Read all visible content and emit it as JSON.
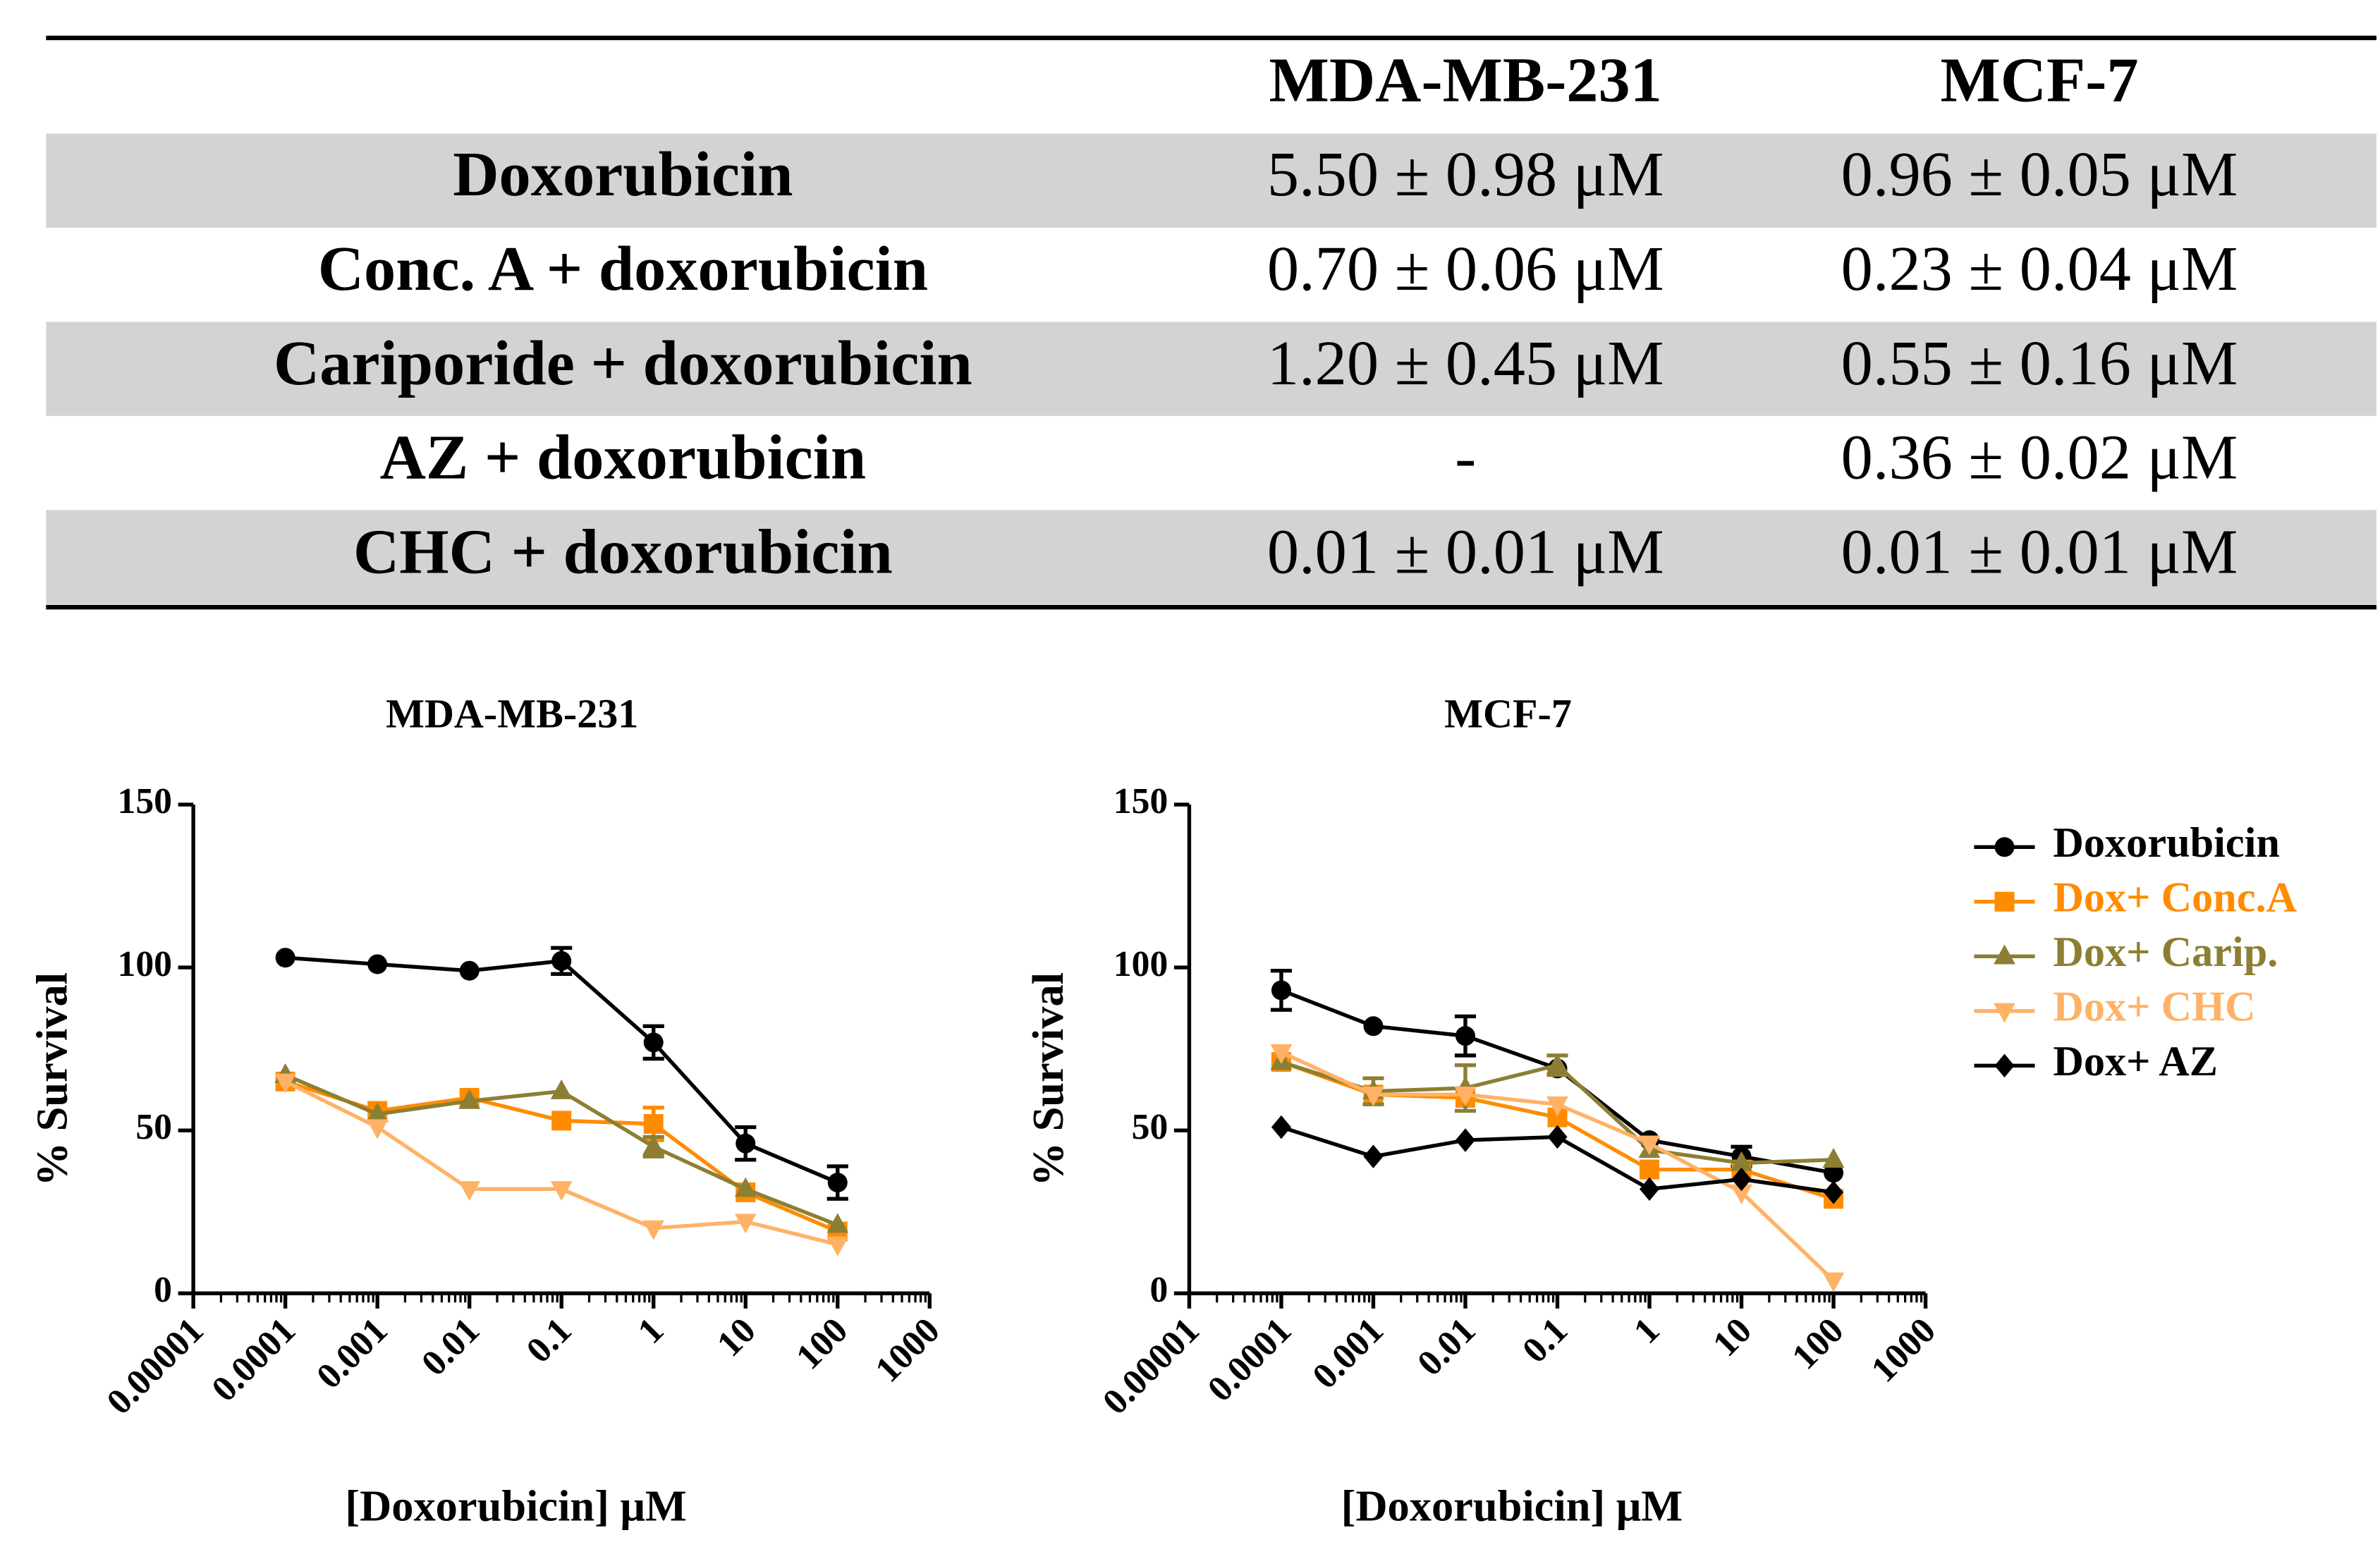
{
  "table": {
    "columns": [
      "MDA-MB-231",
      "MCF-7"
    ],
    "rows": [
      {
        "label": "Doxorubicin",
        "values": [
          "5.50 ± 0.98 μM",
          "0.96 ± 0.05 μM"
        ]
      },
      {
        "label": "Conc. A + doxorubicin",
        "values": [
          "0.70 ± 0.06 μM",
          "0.23 ± 0.04 μM"
        ]
      },
      {
        "label": "Cariporide + doxorubicin",
        "values": [
          "1.20 ± 0.45 μM",
          "0.55 ± 0.16 μM"
        ]
      },
      {
        "label": "AZ + doxorubicin",
        "values": [
          "-",
          "0.36 ± 0.02 μM"
        ]
      },
      {
        "label": "CHC + doxorubicin",
        "values": [
          "0.01 ± 0.01 μM",
          "0.01 ± 0.01 μM"
        ]
      }
    ]
  },
  "chart_data": [
    {
      "type": "line",
      "title": "MDA-MB-231",
      "x_label": "[Doxorubicin] μM",
      "y_label": "% Survival",
      "x": [
        0.0001,
        0.001,
        0.01,
        0.1,
        1,
        10,
        100
      ],
      "log_x": true,
      "xlim": [
        1e-05,
        1000
      ],
      "xticks": [
        1e-05,
        0.0001,
        0.001,
        0.01,
        0.1,
        1,
        10,
        100,
        1000
      ],
      "ylim": [
        0,
        150
      ],
      "yticks": [
        0,
        50,
        100,
        150
      ],
      "series": [
        {
          "color": "#000000",
          "marker": "circle",
          "values": [
            103,
            101,
            99,
            102,
            77,
            46,
            34
          ],
          "errors": [
            null,
            null,
            null,
            4,
            5,
            5,
            5
          ]
        },
        {
          "color": "#ff8c00",
          "marker": "square",
          "values": [
            65,
            56,
            60,
            53,
            52,
            31,
            19
          ],
          "errors": [
            null,
            null,
            null,
            null,
            5,
            null,
            null
          ]
        },
        {
          "color": "#8c7f33",
          "marker": "triangle-up",
          "values": [
            67,
            55,
            59,
            62,
            45,
            32,
            21
          ],
          "errors": [
            null,
            null,
            null,
            null,
            3,
            null,
            null
          ]
        },
        {
          "color": "#ffb266",
          "marker": "triangle-down",
          "values": [
            65,
            51,
            32,
            32,
            20,
            22,
            15
          ],
          "errors": [
            null,
            null,
            null,
            null,
            null,
            null,
            null
          ]
        }
      ]
    },
    {
      "type": "line",
      "title": "MCF-7",
      "x_label": "[Doxorubicin] μM",
      "y_label": "% Survival",
      "x": [
        0.0001,
        0.001,
        0.01,
        0.1,
        1,
        10,
        100
      ],
      "log_x": true,
      "xlim": [
        1e-05,
        1000
      ],
      "xticks": [
        1e-05,
        0.0001,
        0.001,
        0.01,
        0.1,
        1,
        10,
        100,
        1000
      ],
      "ylim": [
        0,
        150
      ],
      "yticks": [
        0,
        50,
        100,
        150
      ],
      "legend": "right",
      "series": [
        {
          "name": "Doxorubicin",
          "color": "#000000",
          "marker": "circle",
          "values": [
            93,
            82,
            79,
            69,
            47,
            42,
            37
          ],
          "errors": [
            6,
            null,
            6,
            null,
            null,
            3,
            null
          ]
        },
        {
          "name": "Dox+ Conc.A",
          "color": "#ff8c00",
          "marker": "square",
          "values": [
            71,
            61,
            60,
            54,
            38,
            38,
            29
          ],
          "errors": [
            null,
            null,
            null,
            null,
            null,
            null,
            null
          ]
        },
        {
          "name": "Dox+ Carip.",
          "color": "#8c7f33",
          "marker": "triangle-up",
          "values": [
            71,
            62,
            63,
            70,
            44,
            40,
            41
          ],
          "errors": [
            null,
            4,
            7,
            3,
            null,
            null,
            null
          ]
        },
        {
          "name": "Dox+ CHC",
          "color": "#ffb266",
          "marker": "triangle-down",
          "values": [
            74,
            61,
            61,
            58,
            46,
            31,
            4
          ],
          "errors": [
            null,
            null,
            null,
            null,
            null,
            null,
            null
          ]
        },
        {
          "name": "Dox+ AZ",
          "color": "#000000",
          "marker": "diamond",
          "values": [
            51,
            42,
            47,
            48,
            32,
            35,
            31
          ],
          "errors": [
            null,
            null,
            null,
            null,
            null,
            null,
            null
          ]
        }
      ]
    }
  ]
}
